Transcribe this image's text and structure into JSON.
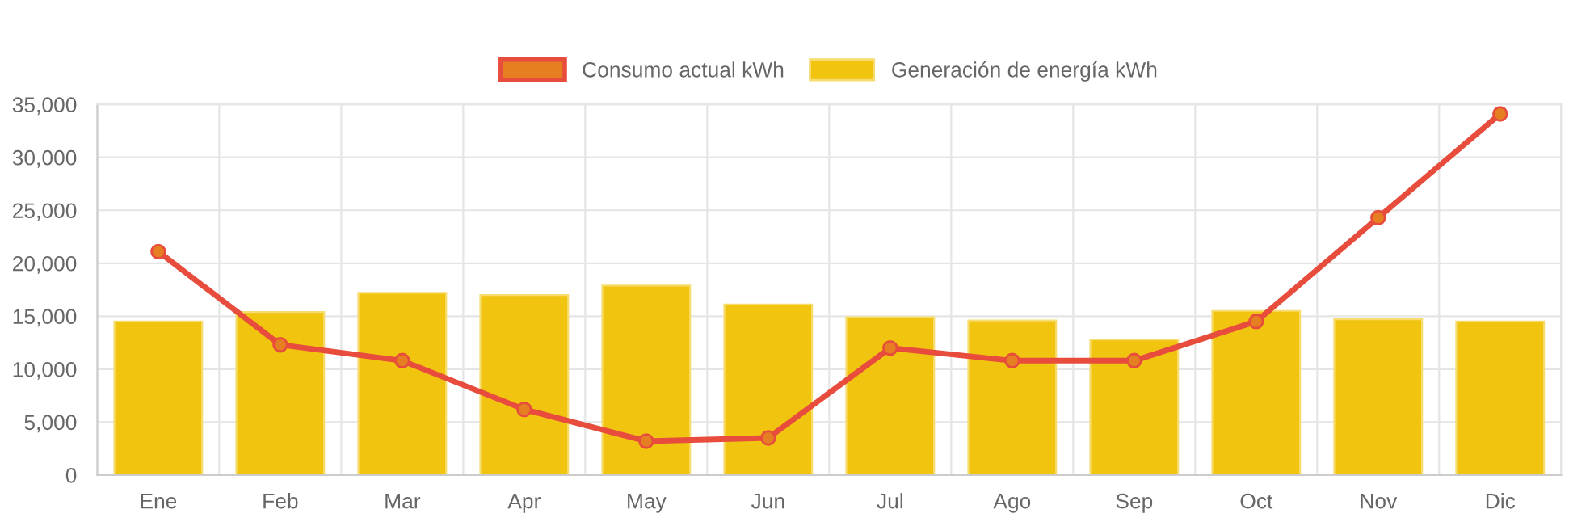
{
  "chart_data": {
    "type": "bar",
    "categories": [
      "Ene",
      "Feb",
      "Mar",
      "Apr",
      "May",
      "Jun",
      "Jul",
      "Ago",
      "Sep",
      "Oct",
      "Nov",
      "Dic"
    ],
    "series": [
      {
        "name": "Consumo actual kWh",
        "type": "line",
        "color": "#e74c3c",
        "marker": "circle",
        "values": [
          21100,
          12300,
          10800,
          6200,
          3200,
          3500,
          12000,
          10800,
          10800,
          14500,
          24300,
          34100
        ]
      },
      {
        "name": "Generación de energía kWh",
        "color": "#f1c40f",
        "values": [
          14500,
          15400,
          17200,
          17000,
          17900,
          16100,
          14900,
          14600,
          12800,
          15500,
          14700,
          14500
        ]
      }
    ],
    "ylim": [
      0,
      35000
    ],
    "yticks": [
      {
        "value": 0,
        "label": "0"
      },
      {
        "value": 5000,
        "label": "5,000"
      },
      {
        "value": 10000,
        "label": "10,000"
      },
      {
        "value": 15000,
        "label": "15,000"
      },
      {
        "value": 20000,
        "label": "20,000"
      },
      {
        "value": 25000,
        "label": "25,000"
      },
      {
        "value": 30000,
        "label": "30,000"
      },
      {
        "value": 35000,
        "label": "35,000"
      }
    ],
    "grid": true,
    "legend": "top"
  }
}
